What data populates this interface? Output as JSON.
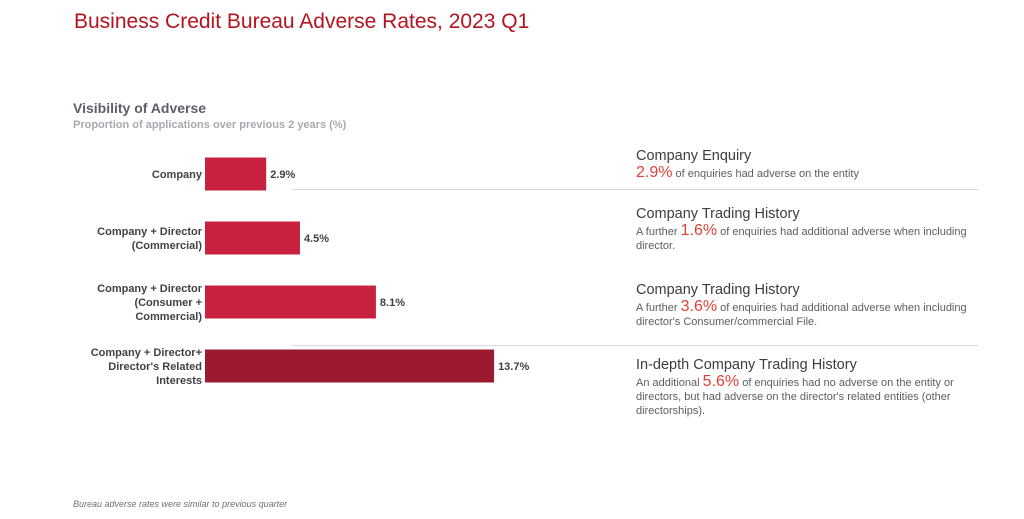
{
  "title": "Business Credit Bureau Adverse Rates, 2023 Q1",
  "chart_data": {
    "type": "bar",
    "orientation": "horizontal",
    "title": "Visibility of Adverse",
    "subtitle": "Proportion of applications over previous 2 years (%)",
    "categories": [
      [
        "Company"
      ],
      [
        "Company + Director",
        "(Commercial)"
      ],
      [
        "Company + Director",
        "(Consumer +",
        "Commercial)"
      ],
      [
        "Company + Director+",
        "Director's Related",
        "Interests"
      ]
    ],
    "values": [
      2.9,
      4.5,
      8.1,
      13.7
    ],
    "value_labels": [
      "2.9%",
      "4.5%",
      "8.1%",
      "13.7%"
    ],
    "colors": [
      "#c8203f",
      "#c8203f",
      "#c8203f",
      "#9b1a2f"
    ],
    "grid": false,
    "legend": "none"
  },
  "panels": [
    {
      "heading": "Company Enquiry",
      "prefix": "",
      "pct": "2.9%",
      "suffix": " of enquiries had adverse on the entity"
    },
    {
      "heading": "Company Trading History",
      "prefix": "A further ",
      "pct": "1.6%",
      "suffix": " of enquiries had additional adverse when including director."
    },
    {
      "heading": "Company Trading History",
      "prefix": "A further ",
      "pct": "3.6%",
      "suffix": " of enquiries had additional adverse when including director's Consumer/commercial File."
    },
    {
      "heading": "In-depth Company Trading History",
      "prefix": "An additional ",
      "pct": "5.6%",
      "suffix": " of enquiries had no adverse on the entity or directors, but had adverse on the director's related entities (other directorships)."
    }
  ],
  "footnote": "Bureau adverse rates were similar to previous quarter"
}
